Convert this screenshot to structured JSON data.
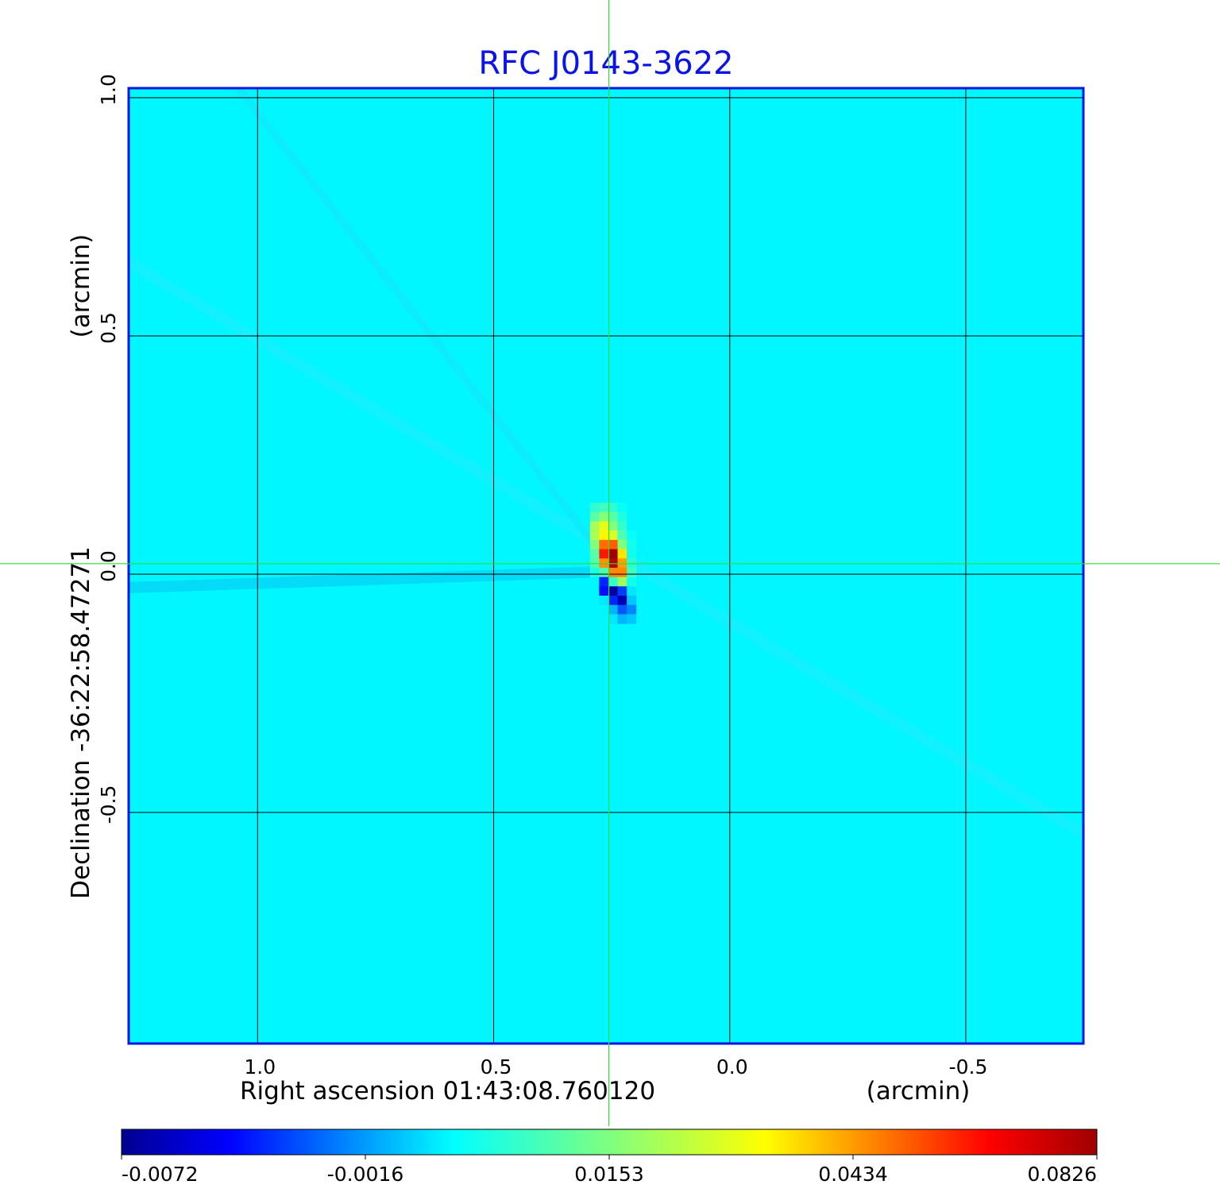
{
  "chart_data": {
    "type": "heatmap",
    "title": "RFC J0143-3622",
    "xlabel": "Right ascension  01:43:08.760120",
    "xunit": "(arcmin)",
    "ylabel": "Declination  -36:22:58.47271",
    "yunit": "(arcmin)",
    "xlim": [
      1.273,
      -0.749
    ],
    "ylim": [
      -0.985,
      1.02
    ],
    "xticks": [
      "1.0",
      "0.5",
      "0.0",
      "-0.5"
    ],
    "xtick_values": [
      1.0,
      0.5,
      0.0,
      -0.5
    ],
    "yticks": [
      "1.0",
      "0.5",
      "0.0",
      "-0.5"
    ],
    "ytick_values": [
      1.0,
      0.5,
      0.0,
      -0.5
    ],
    "grid": true,
    "colormap": "jet",
    "colorbar": {
      "ticks": [
        "-0.0072",
        "-0.0016",
        "0.0153",
        "0.0434",
        "0.0826"
      ],
      "tick_values": [
        -0.0072,
        -0.0016,
        0.0153,
        0.0434,
        0.0826
      ],
      "placement": "bottom"
    },
    "background_value": 0.004,
    "crosshair": {
      "ra": 0.256,
      "dec": 0.022,
      "color": "#33dd33"
    },
    "source": {
      "pixel_arcmin": 0.0195,
      "origin_ra": 0.296,
      "origin_dec": 0.15,
      "values": [
        [
          0.0084,
          0.01,
          0.0084,
          0.005,
          0.004
        ],
        [
          0.012,
          0.016,
          0.012,
          0.007,
          0.004
        ],
        [
          0.021,
          0.03,
          0.016,
          0.009,
          0.004
        ],
        [
          0.021,
          0.034,
          0.028,
          0.011,
          0.005
        ],
        [
          0.016,
          0.05,
          0.052,
          0.016,
          0.006
        ],
        [
          0.012,
          0.062,
          0.0826,
          0.036,
          0.006
        ],
        [
          0.011,
          0.045,
          0.078,
          0.043,
          0.008
        ],
        [
          0.007,
          0.011,
          0.046,
          0.046,
          0.01
        ],
        [
          0.004,
          -0.004,
          0.009,
          0.02,
          0.006
        ],
        [
          0.004,
          -0.0045,
          -0.0068,
          -0.0035,
          0.003
        ],
        [
          0.004,
          0.003,
          -0.004,
          -0.0065,
          0.001
        ],
        [
          0.004,
          0.004,
          0.0,
          -0.003,
          -0.002
        ],
        [
          0.004,
          0.004,
          0.003,
          0.0,
          0.001
        ]
      ]
    }
  },
  "colors": {
    "title": "#0a14e6",
    "frame": "#0a14e6",
    "crosshair": "#33dd33"
  }
}
